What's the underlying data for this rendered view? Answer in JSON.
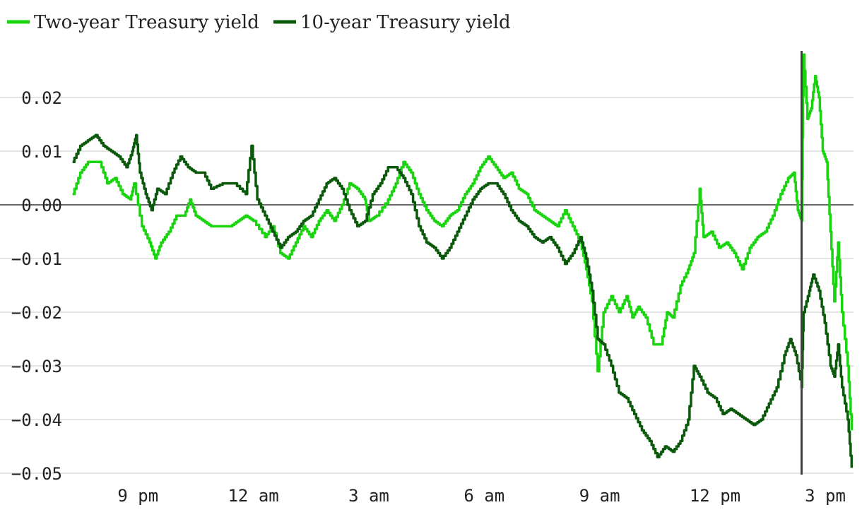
{
  "chart_data": {
    "type": "line",
    "title": "",
    "xlabel": "",
    "ylabel": "",
    "x_tick_labels": [
      "9 pm",
      "12 am",
      "3 am",
      "6 am",
      "9 am",
      "12 pm",
      "3 pm"
    ],
    "x_tick_hours": [
      21,
      24,
      27,
      30,
      33,
      36,
      39
    ],
    "x_range_hours": [
      19.25,
      39.6
    ],
    "y_ticks": [
      0.02,
      0.01,
      0.0,
      -0.01,
      -0.02,
      -0.03,
      -0.04,
      -0.05
    ],
    "y_tick_labels": [
      "0.02",
      "0.01",
      "0.00",
      "−0.01",
      "−0.02",
      "−0.03",
      "−0.04",
      "−0.05"
    ],
    "ylim": [
      -0.05,
      0.029
    ],
    "grid": true,
    "legend_position": "top-left",
    "event_marker_hour": 38.25,
    "series": [
      {
        "name": "Two-year Treasury yield",
        "color": "#19d40f",
        "points": [
          [
            19.3,
            0.002
          ],
          [
            19.5,
            0.006
          ],
          [
            19.7,
            0.008
          ],
          [
            20.0,
            0.008
          ],
          [
            20.2,
            0.004
          ],
          [
            20.4,
            0.005
          ],
          [
            20.6,
            0.002
          ],
          [
            20.8,
            0.001
          ],
          [
            20.9,
            0.004
          ],
          [
            21.1,
            -0.004
          ],
          [
            21.3,
            -0.007
          ],
          [
            21.45,
            -0.01
          ],
          [
            21.6,
            -0.007
          ],
          [
            21.8,
            -0.005
          ],
          [
            22.0,
            -0.002
          ],
          [
            22.2,
            -0.002
          ],
          [
            22.35,
            0.001
          ],
          [
            22.5,
            -0.002
          ],
          [
            22.7,
            -0.003
          ],
          [
            22.9,
            -0.004
          ],
          [
            23.2,
            -0.004
          ],
          [
            23.4,
            -0.004
          ],
          [
            23.6,
            -0.003
          ],
          [
            23.8,
            -0.002
          ],
          [
            24.0,
            -0.003
          ],
          [
            24.3,
            -0.006
          ],
          [
            24.5,
            -0.004
          ],
          [
            24.7,
            -0.009
          ],
          [
            24.9,
            -0.01
          ],
          [
            25.1,
            -0.007
          ],
          [
            25.3,
            -0.004
          ],
          [
            25.5,
            -0.006
          ],
          [
            25.7,
            -0.003
          ],
          [
            25.9,
            -0.001
          ],
          [
            26.1,
            -0.003
          ],
          [
            26.3,
            0.0
          ],
          [
            26.5,
            0.004
          ],
          [
            26.7,
            0.003
          ],
          [
            26.9,
            0.001
          ],
          [
            27.0,
            -0.003
          ],
          [
            27.2,
            -0.002
          ],
          [
            27.5,
            0.001
          ],
          [
            27.7,
            0.004
          ],
          [
            27.9,
            0.008
          ],
          [
            28.1,
            0.006
          ],
          [
            28.3,
            0.002
          ],
          [
            28.5,
            -0.001
          ],
          [
            28.7,
            -0.003
          ],
          [
            28.9,
            -0.004
          ],
          [
            29.1,
            -0.002
          ],
          [
            29.3,
            -0.001
          ],
          [
            29.5,
            0.002
          ],
          [
            29.7,
            0.004
          ],
          [
            29.9,
            0.007
          ],
          [
            30.1,
            0.009
          ],
          [
            30.3,
            0.007
          ],
          [
            30.5,
            0.005
          ],
          [
            30.7,
            0.006
          ],
          [
            30.9,
            0.003
          ],
          [
            31.1,
            0.002
          ],
          [
            31.3,
            -0.001
          ],
          [
            31.5,
            -0.002
          ],
          [
            31.7,
            -0.003
          ],
          [
            31.9,
            -0.004
          ],
          [
            32.1,
            -0.001
          ],
          [
            32.3,
            -0.004
          ],
          [
            32.5,
            -0.007
          ],
          [
            32.65,
            -0.012
          ],
          [
            32.8,
            -0.018
          ],
          [
            32.95,
            -0.031
          ],
          [
            33.1,
            -0.02
          ],
          [
            33.3,
            -0.017
          ],
          [
            33.5,
            -0.02
          ],
          [
            33.7,
            -0.017
          ],
          [
            33.85,
            -0.021
          ],
          [
            34.0,
            -0.019
          ],
          [
            34.2,
            -0.021
          ],
          [
            34.4,
            -0.026
          ],
          [
            34.6,
            -0.026
          ],
          [
            34.75,
            -0.02
          ],
          [
            34.9,
            -0.021
          ],
          [
            35.1,
            -0.015
          ],
          [
            35.3,
            -0.012
          ],
          [
            35.45,
            -0.009
          ],
          [
            35.6,
            0.003
          ],
          [
            35.7,
            -0.006
          ],
          [
            35.9,
            -0.005
          ],
          [
            36.1,
            -0.008
          ],
          [
            36.3,
            -0.007
          ],
          [
            36.5,
            -0.009
          ],
          [
            36.7,
            -0.012
          ],
          [
            36.9,
            -0.008
          ],
          [
            37.1,
            -0.006
          ],
          [
            37.3,
            -0.005
          ],
          [
            37.5,
            -0.002
          ],
          [
            37.7,
            0.002
          ],
          [
            37.9,
            0.005
          ],
          [
            38.05,
            0.006
          ],
          [
            38.15,
            -0.001
          ],
          [
            38.25,
            -0.003
          ],
          [
            38.3,
            0.028
          ],
          [
            38.4,
            0.016
          ],
          [
            38.5,
            0.018
          ],
          [
            38.6,
            0.024
          ],
          [
            38.7,
            0.02
          ],
          [
            38.8,
            0.01
          ],
          [
            38.9,
            0.008
          ],
          [
            39.0,
            -0.005
          ],
          [
            39.1,
            -0.018
          ],
          [
            39.2,
            -0.007
          ],
          [
            39.3,
            -0.02
          ],
          [
            39.45,
            -0.03
          ],
          [
            39.55,
            -0.042
          ]
        ]
      },
      {
        "name": "10-year Treasury yield",
        "color": "#0b5a0b",
        "points": [
          [
            19.3,
            0.008
          ],
          [
            19.5,
            0.011
          ],
          [
            19.7,
            0.012
          ],
          [
            19.9,
            0.013
          ],
          [
            20.1,
            0.011
          ],
          [
            20.3,
            0.01
          ],
          [
            20.5,
            0.009
          ],
          [
            20.7,
            0.007
          ],
          [
            20.85,
            0.01
          ],
          [
            20.95,
            0.013
          ],
          [
            21.05,
            0.006
          ],
          [
            21.2,
            0.002
          ],
          [
            21.35,
            -0.001
          ],
          [
            21.5,
            0.003
          ],
          [
            21.7,
            0.002
          ],
          [
            21.9,
            0.006
          ],
          [
            22.1,
            0.009
          ],
          [
            22.3,
            0.007
          ],
          [
            22.5,
            0.006
          ],
          [
            22.7,
            0.006
          ],
          [
            22.9,
            0.003
          ],
          [
            23.2,
            0.004
          ],
          [
            23.5,
            0.004
          ],
          [
            23.8,
            0.002
          ],
          [
            23.95,
            0.011
          ],
          [
            24.1,
            0.001
          ],
          [
            24.3,
            -0.002
          ],
          [
            24.5,
            -0.005
          ],
          [
            24.7,
            -0.008
          ],
          [
            24.9,
            -0.006
          ],
          [
            25.1,
            -0.005
          ],
          [
            25.3,
            -0.003
          ],
          [
            25.5,
            -0.002
          ],
          [
            25.7,
            0.001
          ],
          [
            25.9,
            0.004
          ],
          [
            26.1,
            0.005
          ],
          [
            26.3,
            0.003
          ],
          [
            26.5,
            -0.001
          ],
          [
            26.7,
            -0.004
          ],
          [
            26.9,
            -0.003
          ],
          [
            27.1,
            0.002
          ],
          [
            27.3,
            0.004
          ],
          [
            27.5,
            0.007
          ],
          [
            27.7,
            0.007
          ],
          [
            27.9,
            0.005
          ],
          [
            28.1,
            0.002
          ],
          [
            28.3,
            -0.004
          ],
          [
            28.5,
            -0.007
          ],
          [
            28.7,
            -0.008
          ],
          [
            28.9,
            -0.01
          ],
          [
            29.1,
            -0.008
          ],
          [
            29.3,
            -0.005
          ],
          [
            29.5,
            -0.002
          ],
          [
            29.7,
            0.001
          ],
          [
            29.9,
            0.003
          ],
          [
            30.1,
            0.004
          ],
          [
            30.3,
            0.004
          ],
          [
            30.5,
            0.002
          ],
          [
            30.7,
            -0.001
          ],
          [
            30.9,
            -0.003
          ],
          [
            31.1,
            -0.004
          ],
          [
            31.3,
            -0.006
          ],
          [
            31.5,
            -0.007
          ],
          [
            31.7,
            -0.006
          ],
          [
            31.9,
            -0.008
          ],
          [
            32.1,
            -0.011
          ],
          [
            32.3,
            -0.009
          ],
          [
            32.5,
            -0.006
          ],
          [
            32.65,
            -0.01
          ],
          [
            32.8,
            -0.016
          ],
          [
            32.95,
            -0.025
          ],
          [
            33.1,
            -0.026
          ],
          [
            33.3,
            -0.03
          ],
          [
            33.5,
            -0.035
          ],
          [
            33.7,
            -0.036
          ],
          [
            33.9,
            -0.039
          ],
          [
            34.1,
            -0.042
          ],
          [
            34.3,
            -0.044
          ],
          [
            34.5,
            -0.047
          ],
          [
            34.7,
            -0.045
          ],
          [
            34.9,
            -0.046
          ],
          [
            35.1,
            -0.044
          ],
          [
            35.3,
            -0.04
          ],
          [
            35.45,
            -0.03
          ],
          [
            35.6,
            -0.032
          ],
          [
            35.8,
            -0.035
          ],
          [
            36.0,
            -0.036
          ],
          [
            36.2,
            -0.039
          ],
          [
            36.4,
            -0.038
          ],
          [
            36.6,
            -0.039
          ],
          [
            36.8,
            -0.04
          ],
          [
            37.0,
            -0.041
          ],
          [
            37.2,
            -0.04
          ],
          [
            37.4,
            -0.037
          ],
          [
            37.6,
            -0.034
          ],
          [
            37.8,
            -0.028
          ],
          [
            37.95,
            -0.025
          ],
          [
            38.1,
            -0.028
          ],
          [
            38.25,
            -0.034
          ],
          [
            38.3,
            -0.02
          ],
          [
            38.45,
            -0.016
          ],
          [
            38.55,
            -0.013
          ],
          [
            38.7,
            -0.016
          ],
          [
            38.85,
            -0.022
          ],
          [
            39.0,
            -0.03
          ],
          [
            39.1,
            -0.032
          ],
          [
            39.2,
            -0.026
          ],
          [
            39.3,
            -0.034
          ],
          [
            39.45,
            -0.04
          ],
          [
            39.55,
            -0.049
          ]
        ]
      }
    ]
  }
}
